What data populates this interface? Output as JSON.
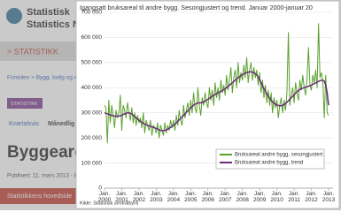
{
  "background": {
    "logo": [
      "Statistisk",
      "Statistics N"
    ],
    "menu": "> STATISTIKK",
    "breadcrumb": "Forsiden > Bygg, bolig og e",
    "badge": "STATISTIKK",
    "tabs": [
      "Kvartalsvis",
      "Månedlig"
    ],
    "heading": "Byggeareal,",
    "published": "Publisert: 11. mars 2013 - E",
    "main_link": "Statistikkens hovedside"
  },
  "chart_data": {
    "type": "line",
    "title": "Igangsatt bruksareal til andre bygg. Sesongjustert og trend. Januar 2000-januar 20",
    "source": "Kilde: Statistisk sentralbyrå",
    "categories": [
      "Jan. 2000",
      null,
      null,
      null,
      null,
      null,
      null,
      null,
      null,
      null,
      null,
      null,
      "Jan. 2001",
      null,
      null,
      null,
      null,
      null,
      null,
      null,
      null,
      null,
      null,
      null,
      "Jan. 2002",
      null,
      null,
      null,
      null,
      null,
      null,
      null,
      null,
      null,
      null,
      null,
      "Jan. 2003",
      null,
      null,
      null,
      null,
      null,
      null,
      null,
      null,
      null,
      null,
      null,
      "Jan. 2004",
      null,
      null,
      null,
      null,
      null,
      null,
      null,
      null,
      null,
      null,
      null,
      "Jan. 2005",
      null,
      null,
      null,
      null,
      null,
      null,
      null,
      null,
      null,
      null,
      null,
      "Jan. 2006",
      null,
      null,
      null,
      null,
      null,
      null,
      null,
      null,
      null,
      null,
      null,
      "Jan. 2007",
      null,
      null,
      null,
      null,
      null,
      null,
      null,
      null,
      null,
      null,
      null,
      "Jan. 2008",
      null,
      null,
      null,
      null,
      null,
      null,
      null,
      null,
      null,
      null,
      null,
      "Jan. 2009",
      null,
      null,
      null,
      null,
      null,
      null,
      null,
      null,
      null,
      null,
      null,
      "Jan. 2010",
      null,
      null,
      null,
      null,
      null,
      null,
      null,
      null,
      null,
      null,
      null,
      "Jan. 2011",
      null,
      null,
      null,
      null,
      null,
      null,
      null,
      null,
      null,
      null,
      null,
      "Jan. 2012",
      null,
      null,
      null,
      null,
      null,
      null,
      null,
      null,
      null,
      null,
      null,
      "Jan. 2013"
    ],
    "series": [
      {
        "name": "Bruksareal andre bygg, sesongjustert",
        "color": "#5aa02c",
        "values": [
          330000,
          320000,
          180000,
          350000,
          260000,
          330000,
          290000,
          240000,
          310000,
          280000,
          300000,
          370000,
          230000,
          330000,
          310000,
          280000,
          340000,
          300000,
          270000,
          320000,
          260000,
          300000,
          250000,
          290000,
          260000,
          280000,
          240000,
          300000,
          220000,
          270000,
          250000,
          230000,
          270000,
          210000,
          250000,
          240000,
          220000,
          260000,
          200000,
          250000,
          230000,
          210000,
          260000,
          220000,
          250000,
          230000,
          270000,
          240000,
          270000,
          230000,
          290000,
          250000,
          310000,
          270000,
          250000,
          330000,
          280000,
          310000,
          340000,
          290000,
          350000,
          300000,
          380000,
          320000,
          300000,
          400000,
          330000,
          290000,
          360000,
          330000,
          380000,
          340000,
          320000,
          400000,
          350000,
          390000,
          330000,
          420000,
          360000,
          400000,
          350000,
          430000,
          380000,
          410000,
          370000,
          450000,
          390000,
          430000,
          480000,
          380000,
          440000,
          470000,
          400000,
          500000,
          420000,
          460000,
          430000,
          490000,
          440000,
          520000,
          420000,
          470000,
          500000,
          430000,
          480000,
          440000,
          470000,
          410000,
          460000,
          380000,
          430000,
          360000,
          410000,
          340000,
          390000,
          330000,
          380000,
          300000,
          360000,
          320000,
          350000,
          280000,
          330000,
          360000,
          300000,
          350000,
          310000,
          380000,
          620000,
          330000,
          370000,
          400000,
          340000,
          420000,
          380000,
          350000,
          430000,
          390000,
          450000,
          400000,
          370000,
          440000,
          560000,
          410000,
          390000,
          450000,
          420000,
          470000,
          400000,
          655000,
          440000,
          460000,
          420000,
          280000,
          450000,
          300000,
          290000
        ]
      },
      {
        "name": "Bruksareal andre bygg, trend",
        "color": "#6b2a7a",
        "values": [
          300000,
          298000,
          296000,
          294000,
          292000,
          290000,
          288000,
          287000,
          286000,
          286000,
          287000,
          288000,
          290000,
          293000,
          296000,
          298000,
          300000,
          300000,
          298000,
          295000,
          290000,
          285000,
          280000,
          275000,
          270000,
          266000,
          262000,
          258000,
          255000,
          252000,
          250000,
          248000,
          246000,
          244000,
          242000,
          240000,
          238000,
          235000,
          232000,
          230000,
          229000,
          229000,
          230000,
          232000,
          235000,
          238000,
          242000,
          246000,
          250000,
          255000,
          260000,
          266000,
          272000,
          278000,
          284000,
          290000,
          296000,
          302000,
          308000,
          314000,
          320000,
          325000,
          330000,
          334000,
          337000,
          339000,
          340000,
          340000,
          341000,
          343000,
          346000,
          350000,
          354000,
          358000,
          362000,
          366000,
          370000,
          373000,
          376000,
          379000,
          382000,
          385000,
          388000,
          392000,
          396000,
          400000,
          405000,
          410000,
          415000,
          420000,
          425000,
          430000,
          435000,
          440000,
          444000,
          448000,
          452000,
          455000,
          458000,
          460000,
          462000,
          463000,
          463000,
          462000,
          460000,
          456000,
          450000,
          442000,
          432000,
          420000,
          408000,
          396000,
          385000,
          375000,
          366000,
          358000,
          350000,
          344000,
          338000,
          334000,
          331000,
          329000,
          328000,
          328000,
          330000,
          333000,
          337000,
          342000,
          348000,
          354000,
          360000,
          366000,
          372000,
          378000,
          384000,
          389000,
          393000,
          396000,
          398000,
          400000,
          402000,
          404000,
          406000,
          408000,
          410000,
          413000,
          416000,
          419000,
          422000,
          425000,
          428000,
          430000,
          430000,
          426000,
          410000,
          380000,
          330000
        ]
      }
    ],
    "ylim": [
      0,
      700000
    ],
    "yticks": [
      0,
      {
        "value": 100000,
        "label": "100 000"
      },
      {
        "value": 200000,
        "label": "200 000"
      },
      {
        "value": 300000,
        "label": "300 000"
      },
      {
        "value": 400000,
        "label": "400 000"
      },
      {
        "value": 500000,
        "label": "500 000"
      },
      {
        "value": 600000,
        "label": "600 000"
      },
      {
        "value": 700000,
        "label": "700 000"
      }
    ],
    "grid": true,
    "legend": "lower right"
  }
}
